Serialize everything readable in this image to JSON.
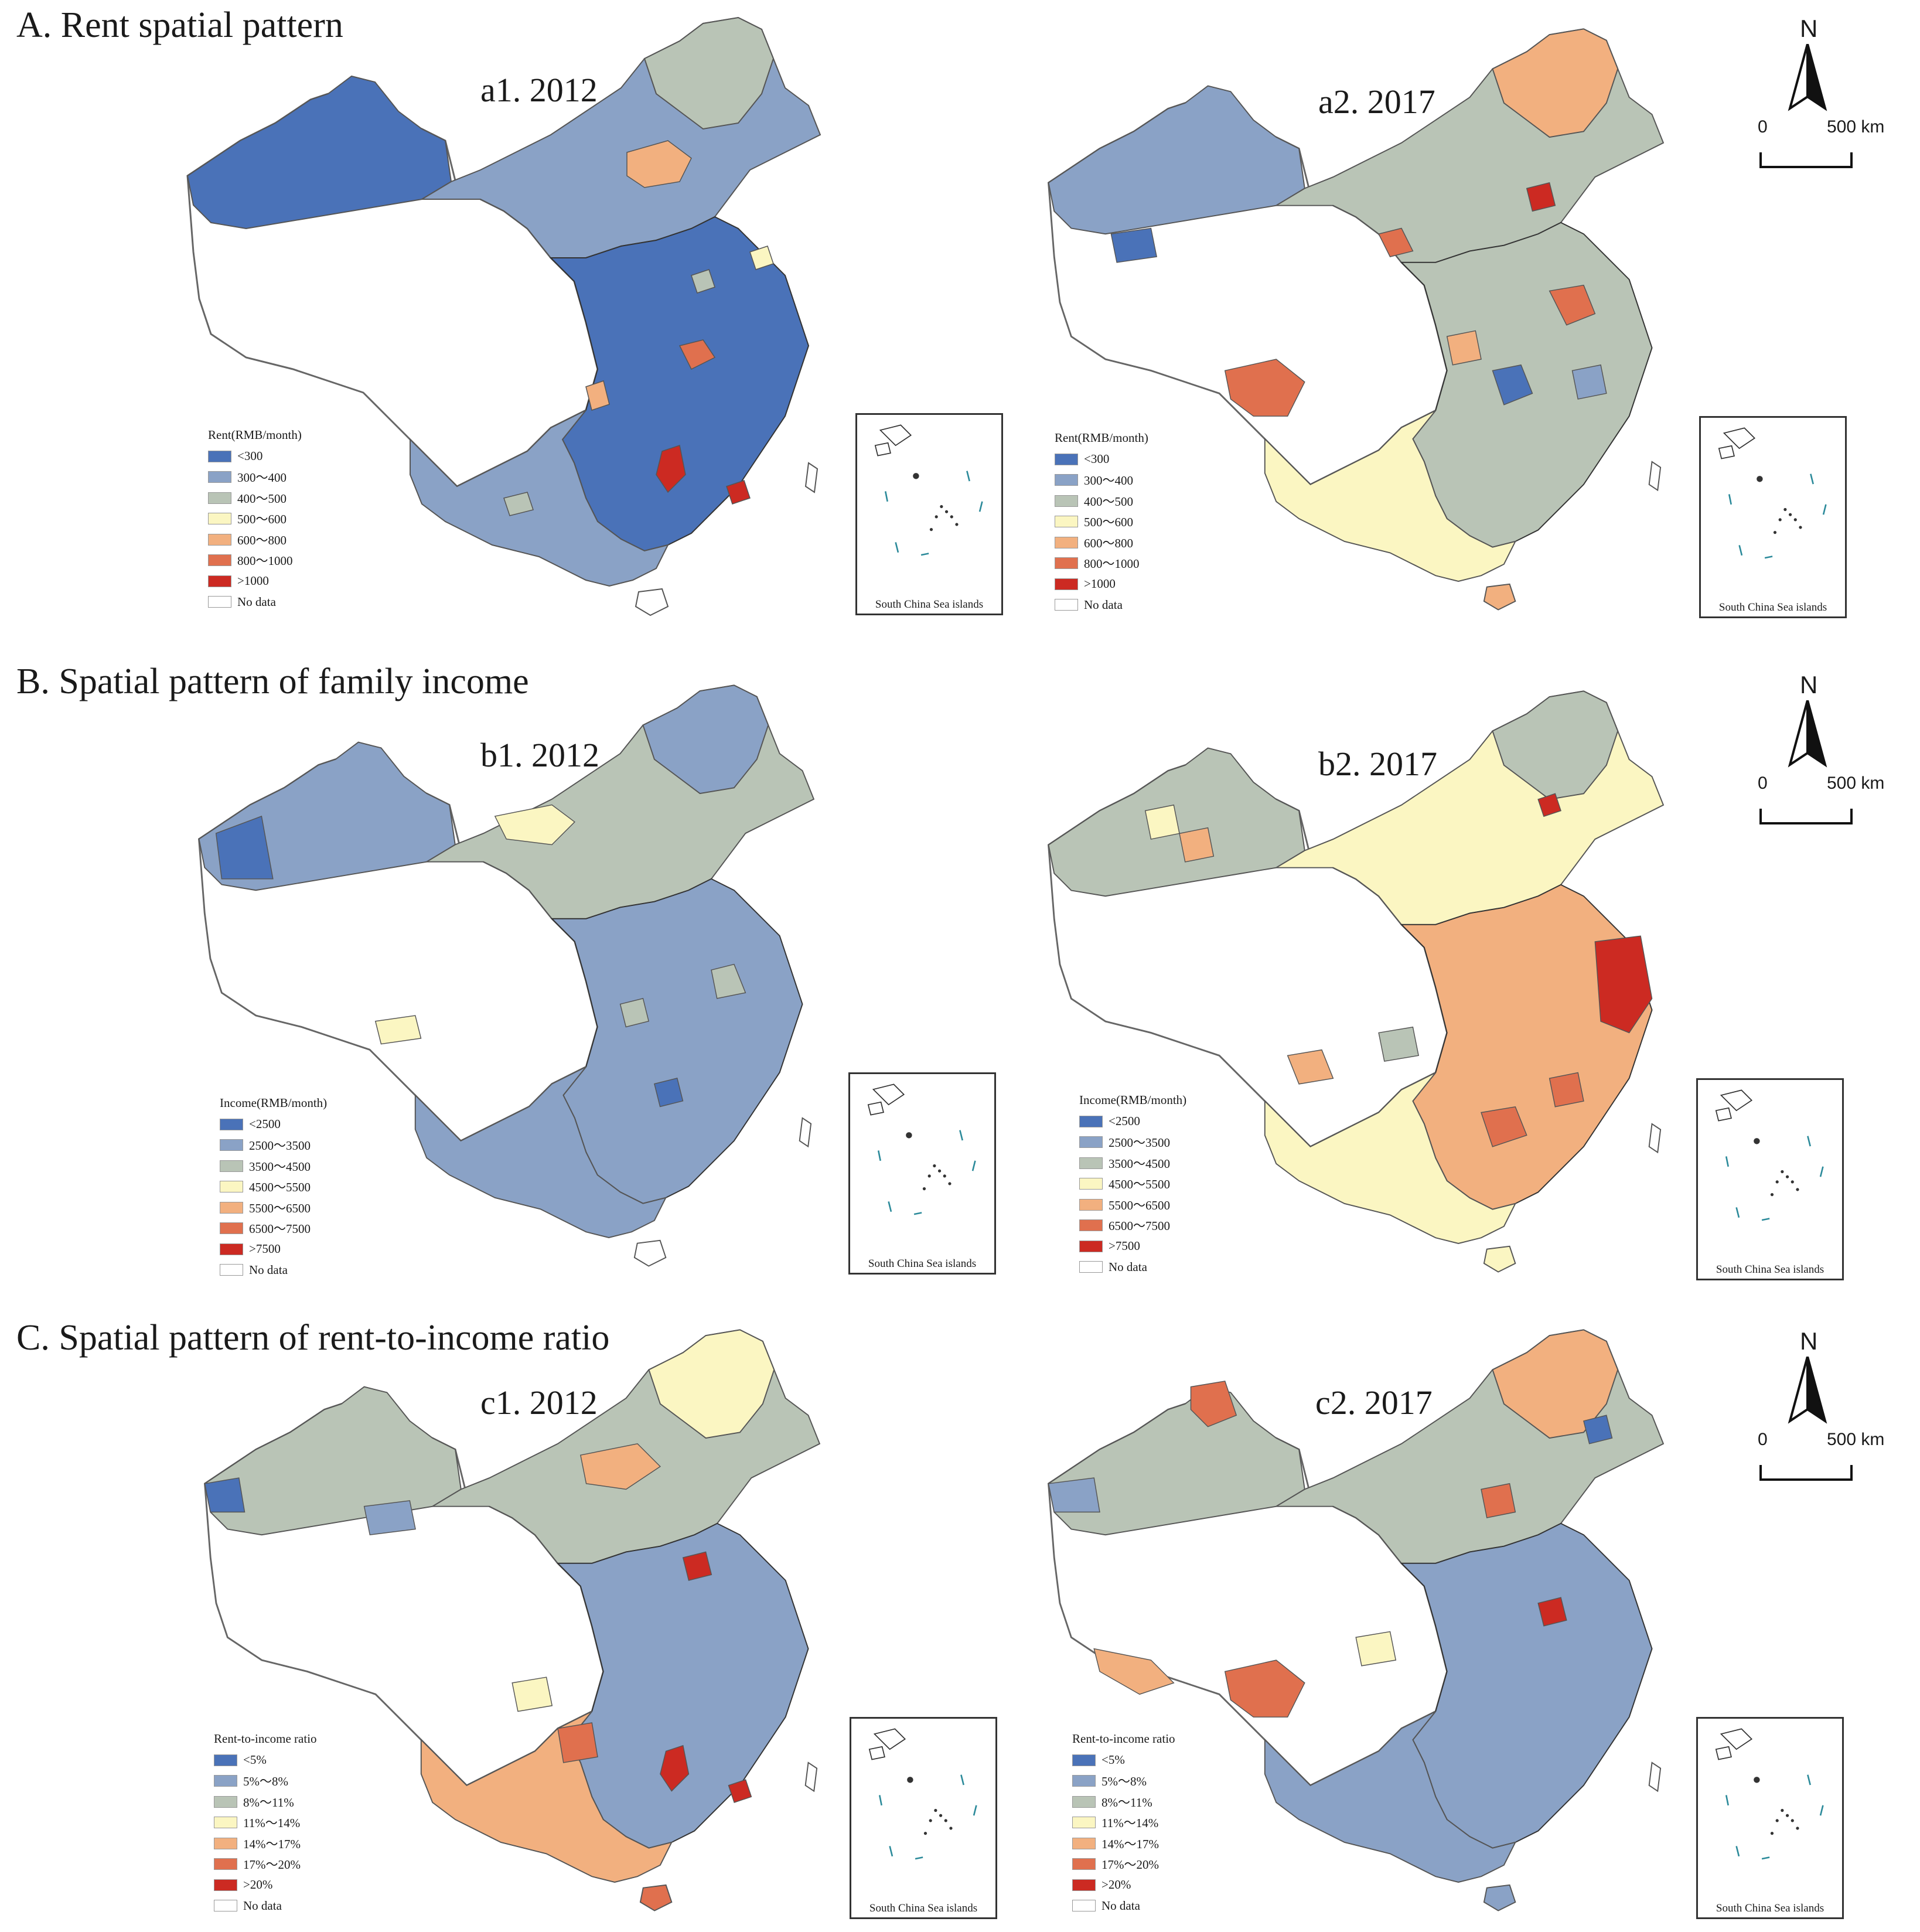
{
  "figure": {
    "sections": [
      {
        "title": "A. Rent spatial pattern",
        "panels": [
          {
            "title": "a1. 2012"
          },
          {
            "title": "a2. 2017"
          }
        ],
        "legend_title": "Rent(RMB/month)",
        "legend_items": [
          "<300",
          "300～400",
          "400～500",
          "500～600",
          "600～800",
          "800～1000",
          ">1000",
          "No data"
        ]
      },
      {
        "title": "B. Spatial pattern of family income",
        "panels": [
          {
            "title": "b1. 2012"
          },
          {
            "title": "b2. 2017"
          }
        ],
        "legend_title": "Income(RMB/month)",
        "legend_items": [
          "<2500",
          "2500～3500",
          "3500～4500",
          "4500～5500",
          "5500～6500",
          "6500～7500",
          ">7500",
          "No data"
        ]
      },
      {
        "title": "C. Spatial pattern of rent-to-income ratio",
        "panels": [
          {
            "title": "c1. 2012"
          },
          {
            "title": "c2. 2017"
          }
        ],
        "legend_title": "Rent-to-income ratio",
        "legend_items": [
          "<5%",
          "5%～8%",
          "8%～11%",
          "11%～14%",
          "14%～17%",
          "17%～20%",
          ">20%",
          "No data"
        ]
      }
    ],
    "inset_label": "South China Sea islands",
    "north_label": "N",
    "scale_zero": "0",
    "scale_max": "500 km",
    "class_colors": [
      "#4a72b8",
      "#8aa2c6",
      "#b9c4b6",
      "#fbf6c2",
      "#f2b07f",
      "#e0704e",
      "#cc2a22",
      "#ffffff"
    ],
    "color_classes": {
      "a1": {
        "dominant": "<300",
        "secondary": "300～400"
      },
      "a2": {
        "dominant": "300～400",
        "secondary": "400～500"
      },
      "b1": {
        "dominant": "2500～3500",
        "secondary": "3500～4500"
      },
      "b2": {
        "dominant": "4500～5500",
        "secondary": "5500～6500"
      },
      "c1": {
        "dominant": "8%～11%",
        "secondary": "5%～8%"
      },
      "c2": {
        "dominant": "8%～11%",
        "secondary": "5%～8%"
      }
    }
  }
}
